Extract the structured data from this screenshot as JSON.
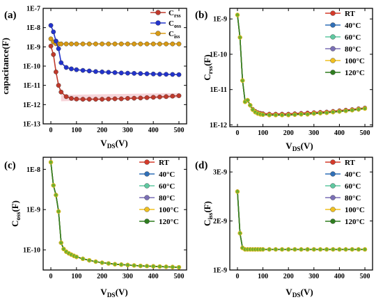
{
  "chart_data": [
    {
      "panel": "(a)",
      "type": "line",
      "xlabel_main": "V",
      "xlabel_sub": "DS",
      "xlabel_tail": "(V)",
      "ylabel": "capacitance(F)",
      "x_ticks": [
        "0",
        "100",
        "200",
        "300",
        "400",
        "500"
      ],
      "y_ticks": [
        "1E-13",
        "1E-12",
        "1E-11",
        "1E-10",
        "1E-9",
        "1E-8",
        "1E-7"
      ],
      "xlim": [
        -30,
        530
      ],
      "ylim_log10": [
        -13,
        -7
      ],
      "legend_position": "top-right",
      "series": [
        {
          "name_main": "C",
          "name_sub": "rss",
          "color": "#c0392b",
          "x": [
            0,
            10,
            20,
            30,
            40,
            60,
            80,
            100,
            125,
            150,
            175,
            200,
            225,
            250,
            275,
            300,
            325,
            350,
            375,
            400,
            425,
            450,
            475,
            500
          ],
          "y": [
            1.1e-09,
            4e-10,
            5e-11,
            1e-11,
            4.5e-12,
            2.6e-12,
            2.1e-12,
            1.95e-12,
            1.9e-12,
            1.9e-12,
            1.9e-12,
            1.9e-12,
            1.95e-12,
            2e-12,
            2e-12,
            2.1e-12,
            2.15e-12,
            2.2e-12,
            2.3e-12,
            2.4e-12,
            2.5e-12,
            2.6e-12,
            2.75e-12,
            2.9e-12
          ]
        },
        {
          "name_main": "C",
          "name_sub": "oss",
          "color": "#2233cc",
          "x": [
            0,
            10,
            20,
            30,
            40,
            60,
            80,
            100,
            125,
            150,
            175,
            200,
            225,
            250,
            275,
            300,
            325,
            350,
            375,
            400,
            425,
            450,
            475,
            500
          ],
          "y": [
            1.3e-08,
            6e-09,
            2e-09,
            8e-10,
            1.5e-10,
            8.5e-11,
            7.2e-11,
            6.5e-11,
            6e-11,
            5.6e-11,
            5.2e-11,
            5e-11,
            4.8e-11,
            4.6e-11,
            4.4e-11,
            4.3e-11,
            4.2e-11,
            4.1e-11,
            4e-11,
            3.9e-11,
            3.8e-11,
            3.75e-11,
            3.7e-11,
            3.6e-11
          ]
        },
        {
          "name_main": "C",
          "name_sub": "iss",
          "color": "#d89a14",
          "x": [
            0,
            10,
            20,
            30,
            40,
            60,
            80,
            100,
            125,
            150,
            175,
            200,
            225,
            250,
            275,
            300,
            325,
            350,
            375,
            400,
            425,
            450,
            475,
            500
          ],
          "y": [
            2.6e-09,
            1.8e-09,
            1.45e-09,
            1.42e-09,
            1.42e-09,
            1.42e-09,
            1.42e-09,
            1.42e-09,
            1.42e-09,
            1.42e-09,
            1.42e-09,
            1.42e-09,
            1.42e-09,
            1.42e-09,
            1.42e-09,
            1.42e-09,
            1.42e-09,
            1.42e-09,
            1.42e-09,
            1.42e-09,
            1.42e-09,
            1.42e-09,
            1.42e-09,
            1.42e-09
          ]
        }
      ]
    },
    {
      "panel": "(b)",
      "type": "line",
      "xlabel_main": "V",
      "xlabel_sub": "DS",
      "xlabel_tail": "(V)",
      "ylabel_main": "C",
      "ylabel_sub": "rss",
      "ylabel_tail": "(F)",
      "x_ticks": [
        "0",
        "100",
        "200",
        "300",
        "400",
        "500"
      ],
      "y_ticks": [
        "1E-12",
        "1E-11",
        "1E-10",
        "1E-9"
      ],
      "xlim": [
        -30,
        530
      ],
      "ylim_log10": [
        -12.05,
        -8.7
      ],
      "legend_position": "top-right",
      "series": [
        {
          "name": "RT",
          "color": "#d43a2a"
        },
        {
          "name": "40°C",
          "color": "#2f6fb7"
        },
        {
          "name": "60°C",
          "color": "#5ec8a0"
        },
        {
          "name": "80°C",
          "color": "#7a6fb5"
        },
        {
          "name": "100°C",
          "color": "#f0c020"
        },
        {
          "name": "120°C",
          "color": "#2e7d1f"
        }
      ],
      "x": [
        0,
        10,
        20,
        30,
        40,
        50,
        60,
        70,
        80,
        90,
        100,
        125,
        150,
        175,
        200,
        225,
        250,
        275,
        300,
        325,
        350,
        375,
        400,
        425,
        450,
        475,
        500
      ],
      "y": [
        1.3e-09,
        3e-10,
        1.8e-11,
        4.5e-12,
        5e-12,
        3.6e-12,
        2.7e-12,
        2.3e-12,
        2.1e-12,
        2e-12,
        1.95e-12,
        1.9e-12,
        1.9e-12,
        1.9e-12,
        1.9e-12,
        1.95e-12,
        2e-12,
        2e-12,
        2.1e-12,
        2.15e-12,
        2.2e-12,
        2.3e-12,
        2.4e-12,
        2.5e-12,
        2.6e-12,
        2.75e-12,
        2.9e-12
      ],
      "y_rt": [
        1.3e-09,
        3e-10,
        1.8e-11,
        4.5e-12,
        5e-12,
        3.6e-12,
        2.8e-12,
        2.45e-12,
        2.25e-12,
        2.15e-12,
        2.1e-12,
        2.05e-12,
        2.05e-12,
        2.05e-12,
        2.05e-12,
        2.1e-12,
        2.15e-12,
        2.2e-12,
        2.25e-12,
        2.3e-12,
        2.35e-12,
        2.45e-12,
        2.55e-12,
        2.65e-12,
        2.75e-12,
        2.9e-12,
        3.05e-12
      ]
    },
    {
      "panel": "(c)",
      "type": "line",
      "xlabel_main": "V",
      "xlabel_sub": "DS",
      "xlabel_tail": "(V)",
      "ylabel_main": "C",
      "ylabel_sub": "oss",
      "ylabel_tail": "(F)",
      "x_ticks": [
        "0",
        "100",
        "200",
        "300",
        "400",
        "500"
      ],
      "y_ticks": [
        "1E-10",
        "1E-9",
        "1E-8"
      ],
      "xlim": [
        -30,
        530
      ],
      "ylim_log10": [
        -10.5,
        -7.7
      ],
      "legend_position": "top-right",
      "series": [
        {
          "name": "RT",
          "color": "#d43a2a"
        },
        {
          "name": "40°C",
          "color": "#2f6fb7"
        },
        {
          "name": "60°C",
          "color": "#5ec8a0"
        },
        {
          "name": "80°C",
          "color": "#7a6fb5"
        },
        {
          "name": "100°C",
          "color": "#f0c020"
        },
        {
          "name": "120°C",
          "color": "#2e7d1f"
        }
      ],
      "x": [
        0,
        10,
        20,
        30,
        40,
        50,
        60,
        70,
        80,
        90,
        100,
        125,
        150,
        175,
        200,
        225,
        250,
        275,
        300,
        325,
        350,
        375,
        400,
        425,
        450,
        475,
        500
      ],
      "y": [
        1.5e-08,
        4e-09,
        2.3e-09,
        9e-10,
        1.5e-10,
        1.05e-10,
        9e-11,
        8.2e-11,
        7.6e-11,
        7.1e-11,
        6.7e-11,
        6e-11,
        5.5e-11,
        5.1e-11,
        4.8e-11,
        4.6e-11,
        4.4e-11,
        4.3e-11,
        4.2e-11,
        4.1e-11,
        4e-11,
        3.95e-11,
        3.9e-11,
        3.85e-11,
        3.8e-11,
        3.75e-11,
        3.7e-11
      ]
    },
    {
      "panel": "(d)",
      "type": "line",
      "xlabel_main": "V",
      "xlabel_sub": "DS",
      "xlabel_tail": "(V)",
      "ylabel_main": "C",
      "ylabel_sub": "iss",
      "ylabel_tail": "(F)",
      "x_ticks": [
        "0",
        "100",
        "200",
        "300",
        "400",
        "500"
      ],
      "y_ticks": [
        "1E-9",
        "2E-9",
        "3E-9"
      ],
      "xlim": [
        -30,
        530
      ],
      "ylim": [
        1e-09,
        3.3e-09
      ],
      "legend_position": "top-right",
      "series": [
        {
          "name": "RT",
          "color": "#d43a2a"
        },
        {
          "name": "40°C",
          "color": "#2f6fb7"
        },
        {
          "name": "60°C",
          "color": "#5ec8a0"
        },
        {
          "name": "80°C",
          "color": "#7a6fb5"
        },
        {
          "name": "100°C",
          "color": "#f0c020"
        },
        {
          "name": "120°C",
          "color": "#2e7d1f"
        }
      ],
      "x": [
        0,
        10,
        20,
        30,
        40,
        50,
        60,
        70,
        80,
        90,
        100,
        125,
        150,
        175,
        200,
        225,
        250,
        275,
        300,
        325,
        350,
        375,
        400,
        425,
        450,
        475,
        500
      ],
      "y": [
        2.6e-09,
        1.75e-09,
        1.45e-09,
        1.42e-09,
        1.42e-09,
        1.42e-09,
        1.42e-09,
        1.42e-09,
        1.42e-09,
        1.42e-09,
        1.42e-09,
        1.42e-09,
        1.42e-09,
        1.42e-09,
        1.42e-09,
        1.42e-09,
        1.42e-09,
        1.42e-09,
        1.42e-09,
        1.42e-09,
        1.42e-09,
        1.42e-09,
        1.42e-09,
        1.42e-09,
        1.42e-09,
        1.42e-09,
        1.42e-09
      ]
    }
  ]
}
